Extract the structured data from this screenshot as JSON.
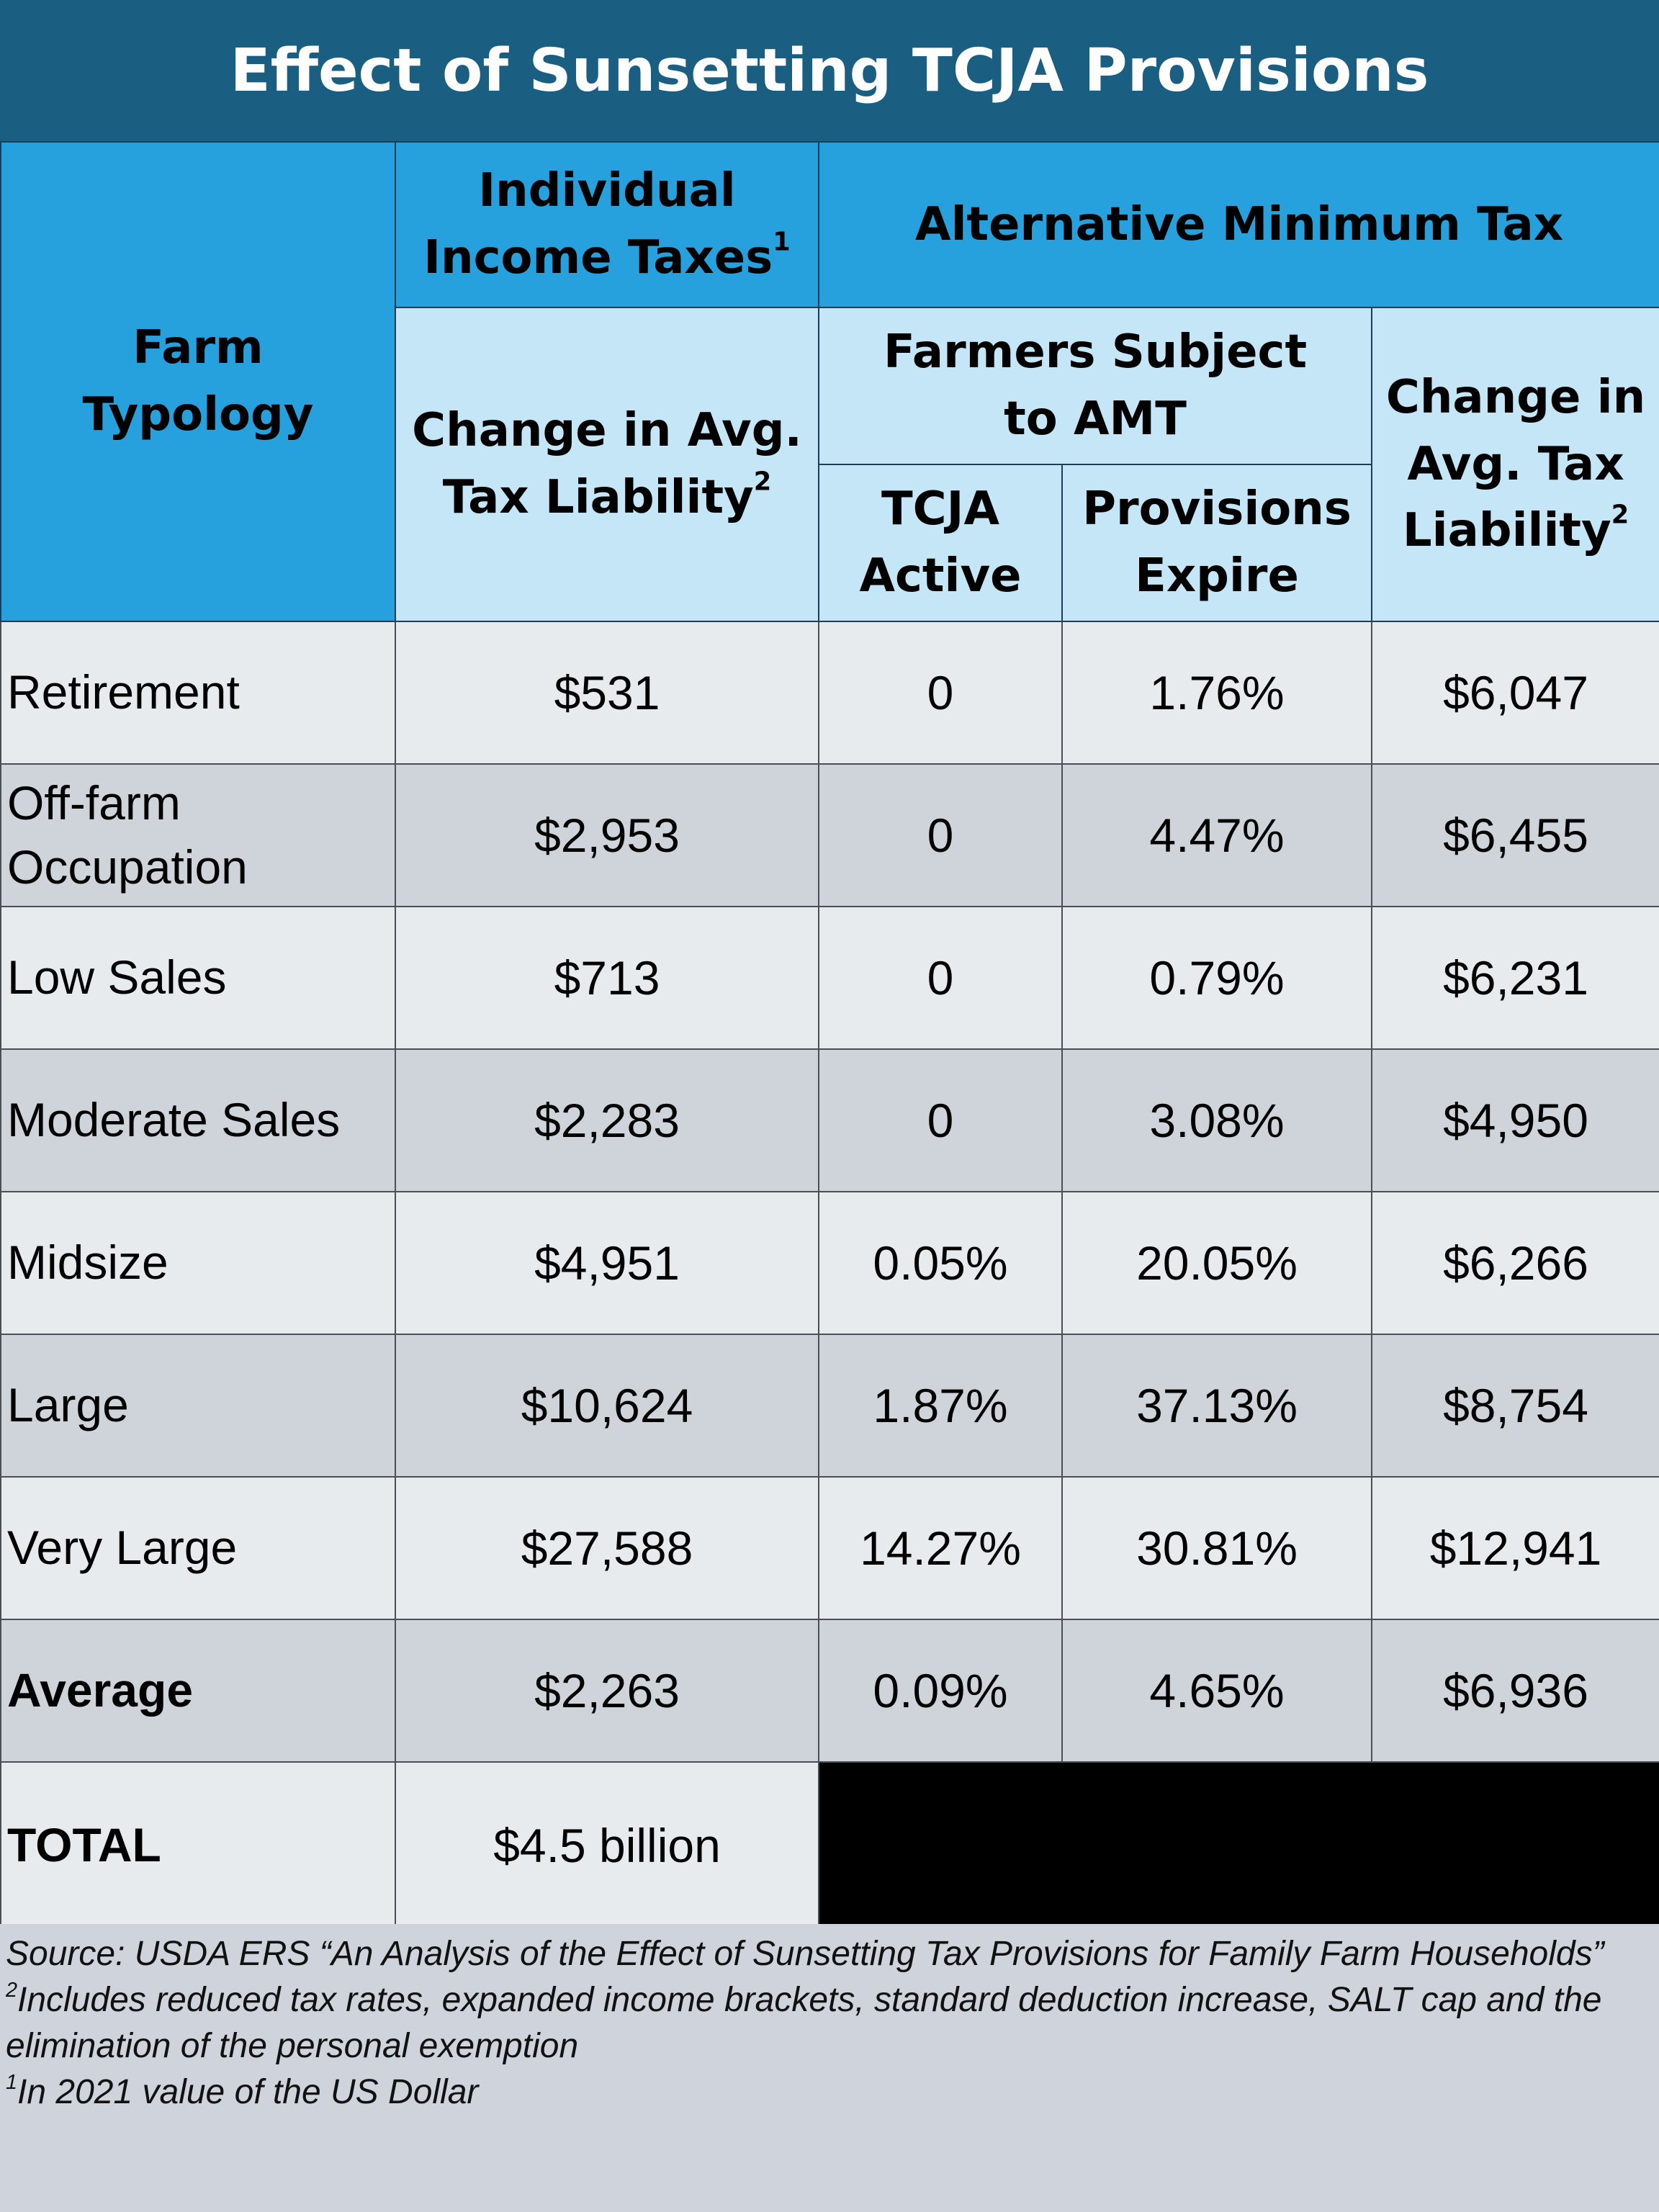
{
  "title": "Effect of Sunsetting TCJA Provisions",
  "header": {
    "farm_typology": "Farm Typology",
    "individual_income_taxes": "Individual Income Taxes",
    "individual_income_taxes_sup": "1",
    "alternative_minimum_tax": "Alternative Minimum Tax",
    "change_avg_tax_liability": "Change in Avg. Tax Liability",
    "change_avg_tax_liability_sup": "2",
    "farmers_subject_to_amt": "Farmers Subject to AMT",
    "tcja_active": "TCJA Active",
    "provisions_expire": "Provisions Expire",
    "amt_change_avg_tax_liability": "Change in Avg. Tax Liability",
    "amt_change_avg_tax_liability_sup": "2"
  },
  "rows": [
    {
      "typology": "Retirement",
      "income_change": "$531",
      "tcja_active": "0",
      "provisions_expire": "1.76%",
      "amt_change": "$6,047"
    },
    {
      "typology": "Off-farm Occupation",
      "income_change": "$2,953",
      "tcja_active": "0",
      "provisions_expire": "4.47%",
      "amt_change": "$6,455"
    },
    {
      "typology": "Low Sales",
      "income_change": "$713",
      "tcja_active": "0",
      "provisions_expire": "0.79%",
      "amt_change": "$6,231"
    },
    {
      "typology": "Moderate Sales",
      "income_change": "$2,283",
      "tcja_active": "0",
      "provisions_expire": "3.08%",
      "amt_change": "$4,950"
    },
    {
      "typology": "Midsize",
      "income_change": "$4,951",
      "tcja_active": "0.05%",
      "provisions_expire": "20.05%",
      "amt_change": "$6,266"
    },
    {
      "typology": "Large",
      "income_change": "$10,624",
      "tcja_active": "1.87%",
      "provisions_expire": "37.13%",
      "amt_change": "$8,754"
    },
    {
      "typology": "Very Large",
      "income_change": "$27,588",
      "tcja_active": "14.27%",
      "provisions_expire": "30.81%",
      "amt_change": "$12,941"
    },
    {
      "typology": "Average",
      "income_change": "$2,263",
      "tcja_active": "0.09%",
      "provisions_expire": "4.65%",
      "amt_change": "$6,936"
    }
  ],
  "total": {
    "label": "TOTAL",
    "value": "$4.5 billion"
  },
  "footer": {
    "source": "Source: USDA ERS “An Analysis of the Effect of Sunsetting Tax Provisions for Family Farm Households”",
    "note2_sup": "2",
    "note2": "Includes reduced tax rates, expanded income brackets, standard deduction increase, SALT cap and the elimination of the personal exemption",
    "note1_sup": "1",
    "note1": "In 2021 value of the US Dollar"
  },
  "colors": {
    "title_bg": "#1a5f82",
    "header_dark": "#27a1dd",
    "header_light": "#c5e6f6",
    "row_light": "#e7ebee",
    "row_dark": "#cfd4da"
  }
}
